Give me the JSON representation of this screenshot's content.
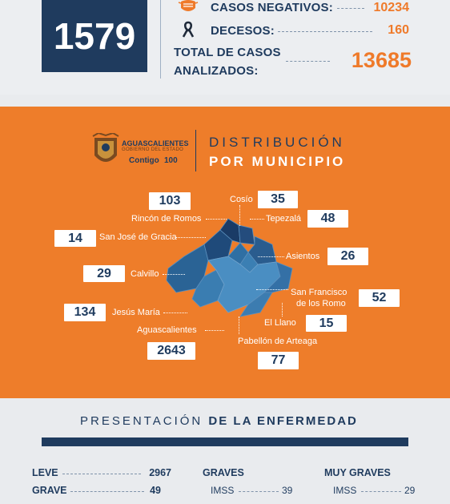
{
  "top": {
    "big_number": "1579",
    "negatives_label": "CASOS NEGATIVOS:",
    "negatives_value": "10234",
    "deaths_label": "DECESOS:",
    "deaths_value": "160",
    "total_label_1": "TOTAL DE CASOS",
    "total_label_2": "ANALIZADOS:",
    "total_value": "13685"
  },
  "header": {
    "logo_line1": "AGUASCALIENTES",
    "logo_line2": "GOBIERNO DEL ESTADO",
    "logo_line3": "Contigo",
    "logo_line4": "100",
    "title_line1": "DISTRIBUCIÓN",
    "title_line2": "POR MUNICIPIO"
  },
  "municipios": [
    {
      "name": "Rincón de Romos",
      "value": "103"
    },
    {
      "name": "Cosío",
      "value": "35"
    },
    {
      "name": "Tepezalá",
      "value": "48"
    },
    {
      "name": "San José de Gracia",
      "value": "14"
    },
    {
      "name": "Asientos",
      "value": "26"
    },
    {
      "name": "Calvillo",
      "value": "29"
    },
    {
      "name_1": "San Francisco",
      "name_2": "de los Romo",
      "value": "52"
    },
    {
      "name": "Jesús María",
      "value": "134"
    },
    {
      "name": "El Llano",
      "value": "15"
    },
    {
      "name": "Aguascalientes",
      "value": "2643"
    },
    {
      "name": "Pabellón de Arteaga",
      "value": "77"
    }
  ],
  "presentacion": {
    "title_light": "PRESENTACIÓN",
    "title_bold": "DE LA ENFERMEDAD"
  },
  "severity": {
    "leve_label": "LEVE",
    "leve_value": "2967",
    "grave_label": "GRAVE",
    "grave_value": "49",
    "graves_title": "GRAVES",
    "graves_imss_label": "IMSS",
    "graves_imss_value": "39",
    "muy_graves_title": "MUY GRAVES",
    "muy_graves_imss_label": "IMSS",
    "muy_graves_imss_value": "29"
  },
  "colors": {
    "navy": "#1f3b5e",
    "orange": "#ee7d2a",
    "map_dark": "#1f3f6b",
    "map_mid": "#2c6a9a",
    "map_light": "#3f86b8"
  },
  "icons": [
    "mask-icon",
    "ribbon-icon",
    "state-coat-of-arms-logo"
  ]
}
